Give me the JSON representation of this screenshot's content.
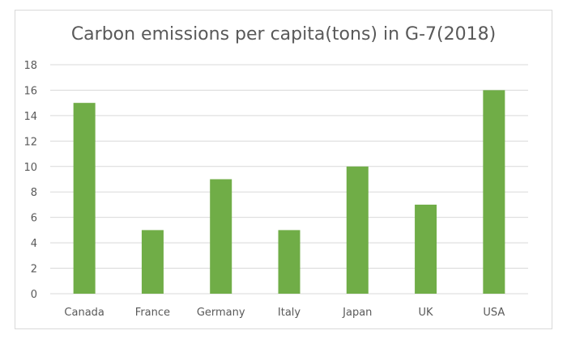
{
  "chart_data": {
    "type": "bar",
    "title": "Carbon emissions per capita(tons) in G-7(2018)",
    "xlabel": "",
    "ylabel": "",
    "categories": [
      "Canada",
      "France",
      "Germany",
      "Italy",
      "Japan",
      "UK",
      "USA"
    ],
    "values": [
      15,
      5,
      9,
      5,
      10,
      7,
      16
    ],
    "ylim": [
      0,
      18
    ],
    "yticks": [
      "0",
      "2",
      "4",
      "6",
      "8",
      "10",
      "12",
      "14",
      "16",
      "18"
    ],
    "grid": true,
    "legend": "none",
    "bar_color": "#70ad47",
    "grid_color": "#d9d9d9"
  }
}
